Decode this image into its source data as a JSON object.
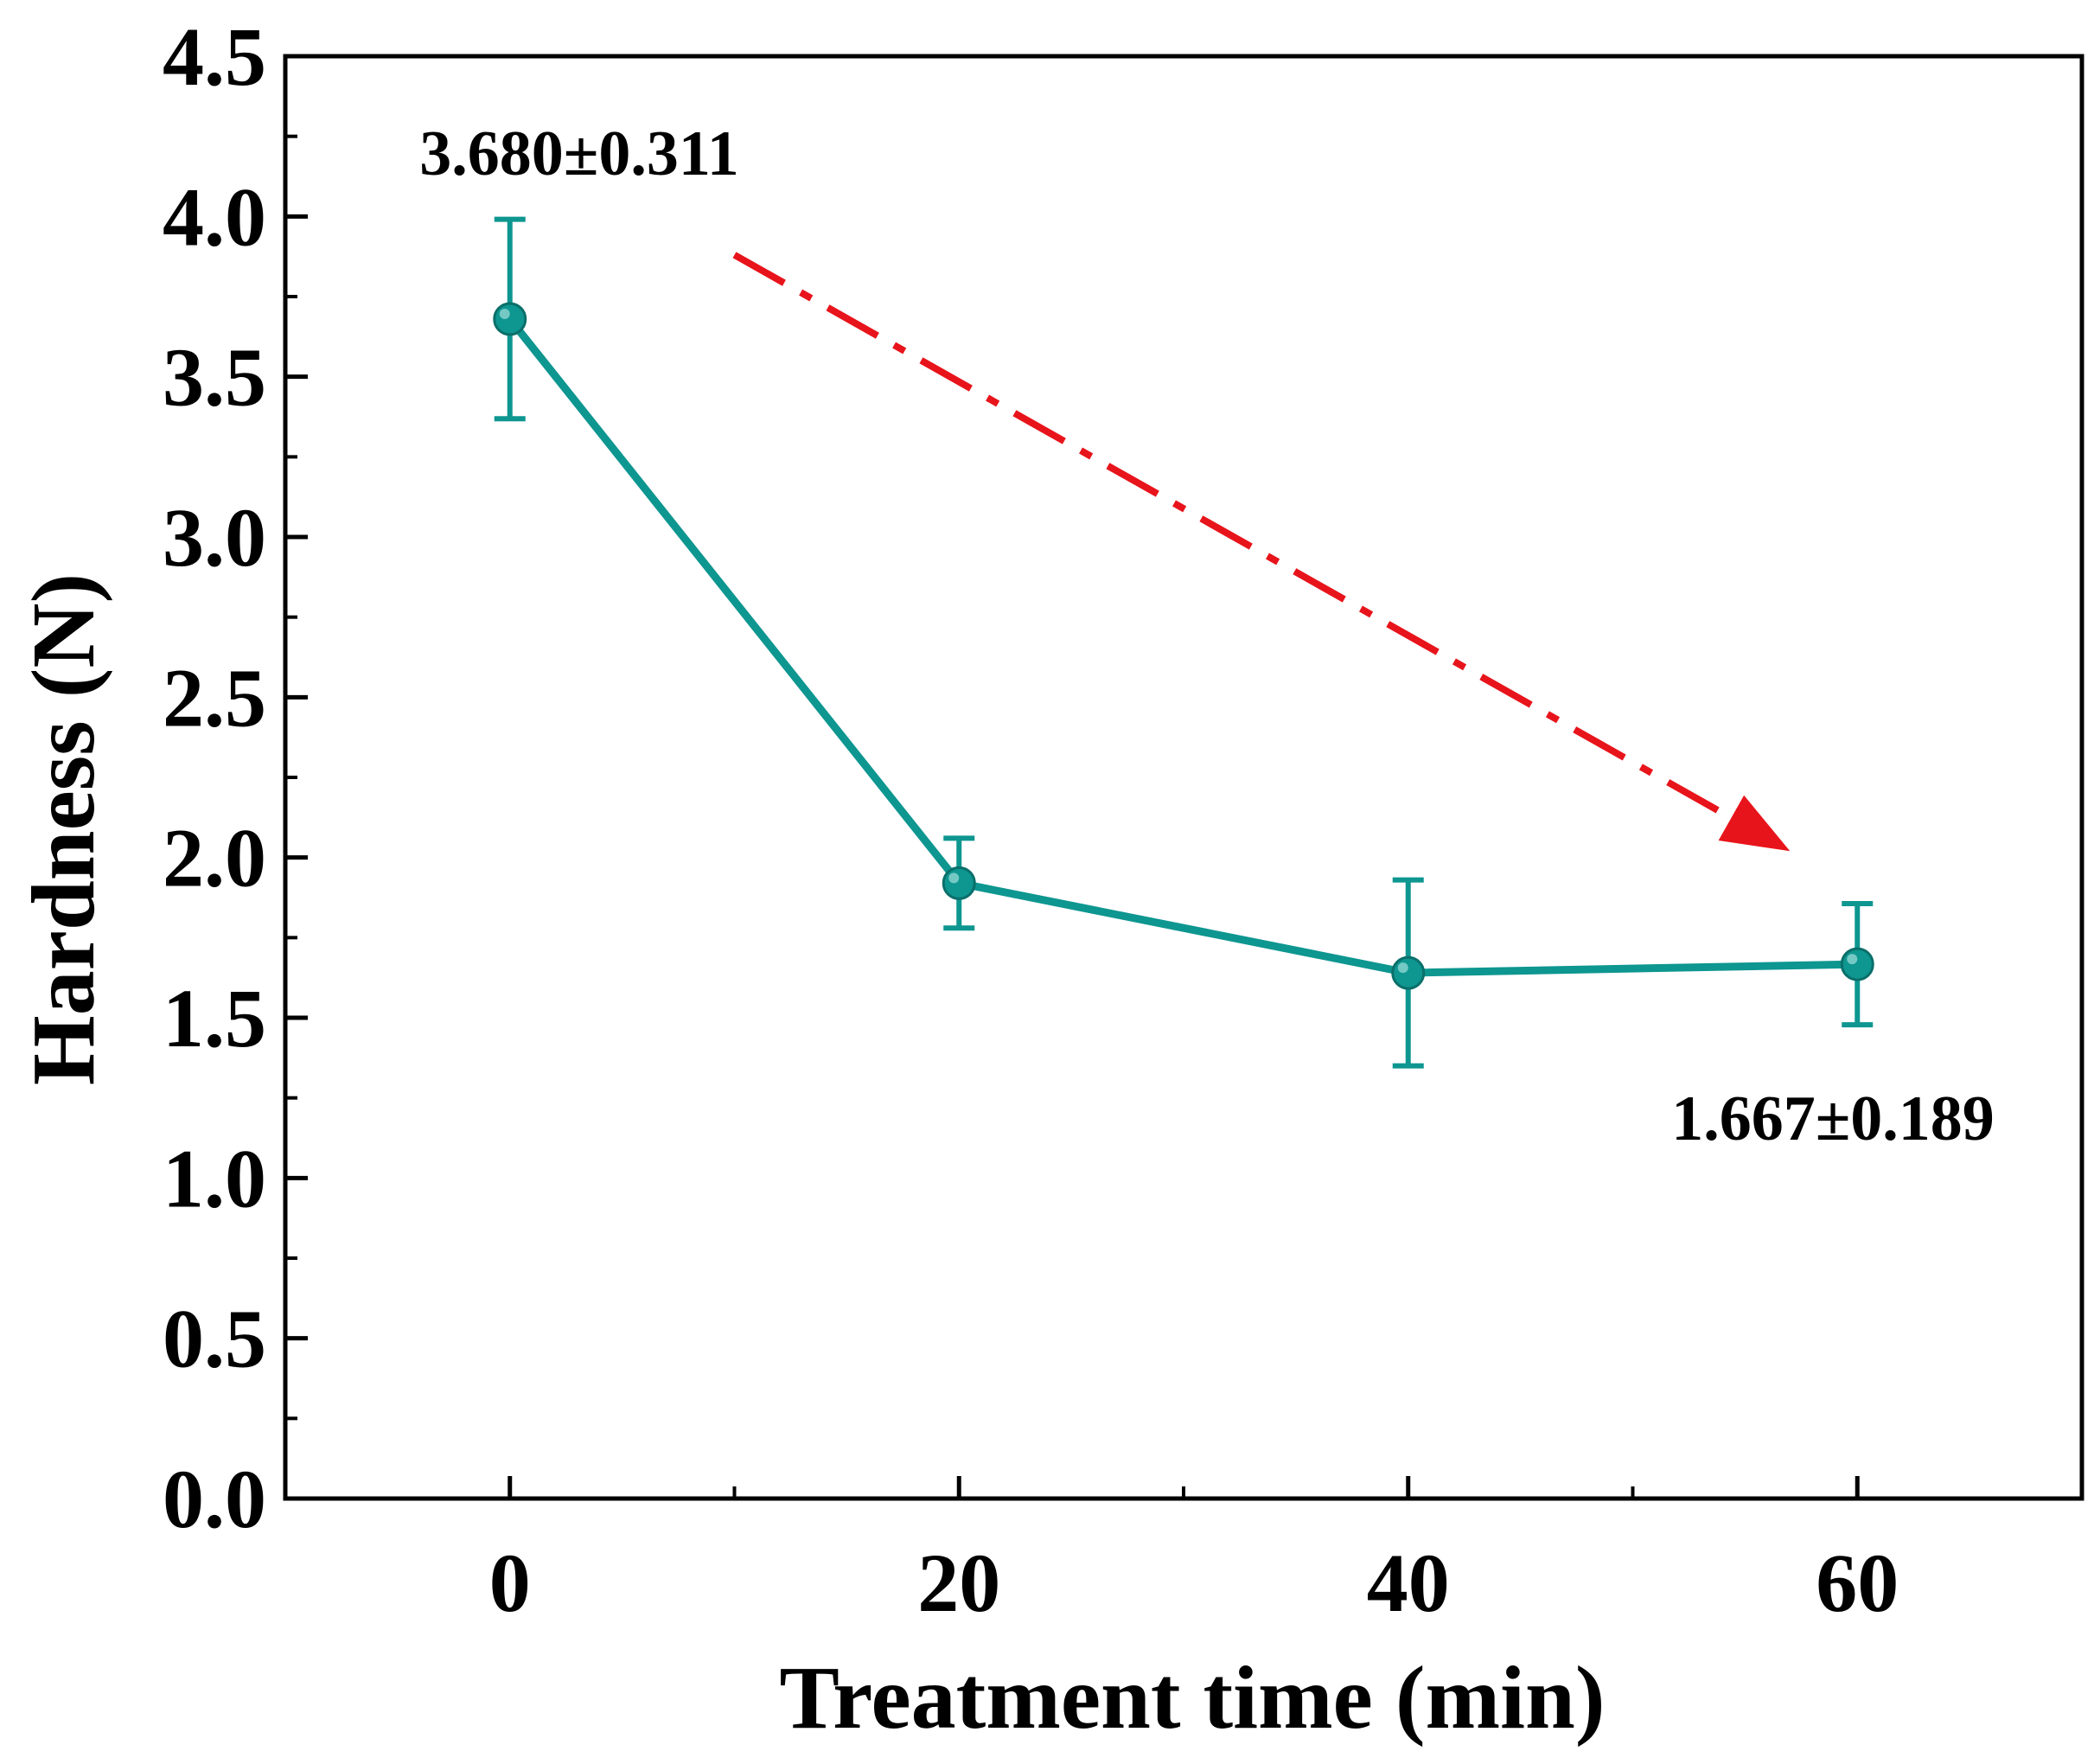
{
  "chart_data": {
    "type": "line",
    "title": "",
    "xlabel": "Treatment time (min)",
    "ylabel": "Hardness (N)",
    "xlim": [
      -10,
      70
    ],
    "ylim": [
      0,
      4.5
    ],
    "x_ticks": [
      0,
      20,
      40,
      60
    ],
    "x_tick_labels": [
      "0",
      "20",
      "40",
      "60"
    ],
    "x_minor_ticks": [
      10,
      30,
      50
    ],
    "y_ticks": [
      0,
      0.5,
      1.0,
      1.5,
      2.0,
      2.5,
      3.0,
      3.5,
      4.0,
      4.5
    ],
    "y_tick_labels": [
      "0.0",
      "0.5",
      "1.0",
      "1.5",
      "2.0",
      "2.5",
      "3.0",
      "3.5",
      "4.0",
      "4.5"
    ],
    "grid": false,
    "series": [
      {
        "x": [
          0,
          20,
          40,
          60
        ],
        "y": [
          3.68,
          1.92,
          1.64,
          1.667
        ],
        "error": [
          0.311,
          0.14,
          0.29,
          0.189
        ],
        "color": "#0e9690",
        "marker": "circle"
      }
    ],
    "annotations": [
      {
        "text": "3.680±0.311",
        "x": 0,
        "y": 4.13
      },
      {
        "text": "1.667±0.189",
        "x": 60,
        "y": 1.12
      }
    ],
    "trend_arrow": {
      "from": [
        10,
        3.88
      ],
      "to": [
        57,
        2.02
      ],
      "color": "#e8141b",
      "style": "dash-dot"
    }
  }
}
